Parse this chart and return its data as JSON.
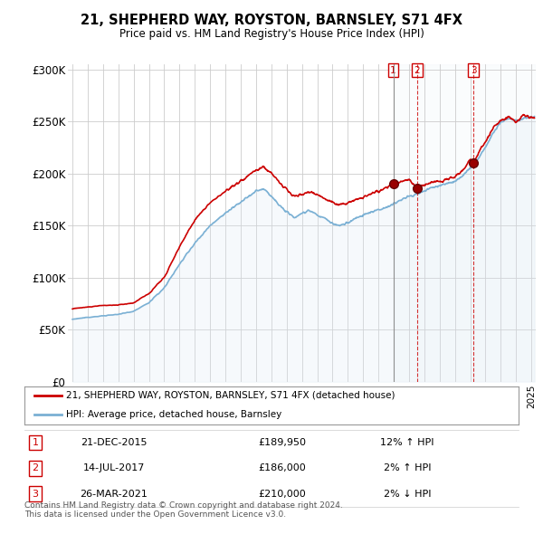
{
  "title": "21, SHEPHERD WAY, ROYSTON, BARNSLEY, S71 4FX",
  "subtitle": "Price paid vs. HM Land Registry's House Price Index (HPI)",
  "ylabel_ticks": [
    "£0",
    "£50K",
    "£100K",
    "£150K",
    "£200K",
    "£250K",
    "£300K"
  ],
  "ytick_values": [
    0,
    50000,
    100000,
    150000,
    200000,
    250000,
    300000
  ],
  "ylim": [
    0,
    305000
  ],
  "xlim_start": 1994.7,
  "xlim_end": 2025.3,
  "sale_color": "#cc0000",
  "hpi_color": "#7ab0d4",
  "hpi_fill_color": "#deeaf5",
  "sales": [
    {
      "date_num": 2015.97,
      "price": 189950,
      "label": "1"
    },
    {
      "date_num": 2017.54,
      "price": 186000,
      "label": "2"
    },
    {
      "date_num": 2021.23,
      "price": 210000,
      "label": "3"
    }
  ],
  "table_data": [
    {
      "num": "1",
      "date": "21-DEC-2015",
      "price": "£189,950",
      "change": "12% ↑ HPI"
    },
    {
      "num": "2",
      "date": "14-JUL-2017",
      "price": "£186,000",
      "change": "2% ↑ HPI"
    },
    {
      "num": "3",
      "date": "26-MAR-2021",
      "price": "£210,000",
      "change": "2% ↓ HPI"
    }
  ],
  "legend_label_sale": "21, SHEPHERD WAY, ROYSTON, BARNSLEY, S71 4FX (detached house)",
  "legend_label_hpi": "HPI: Average price, detached house, Barnsley",
  "footer": "Contains HM Land Registry data © Crown copyright and database right 2024.\nThis data is licensed under the Open Government Licence v3.0.",
  "background_color": "#ffffff",
  "plot_bg_color": "#ffffff",
  "grid_color": "#cccccc"
}
